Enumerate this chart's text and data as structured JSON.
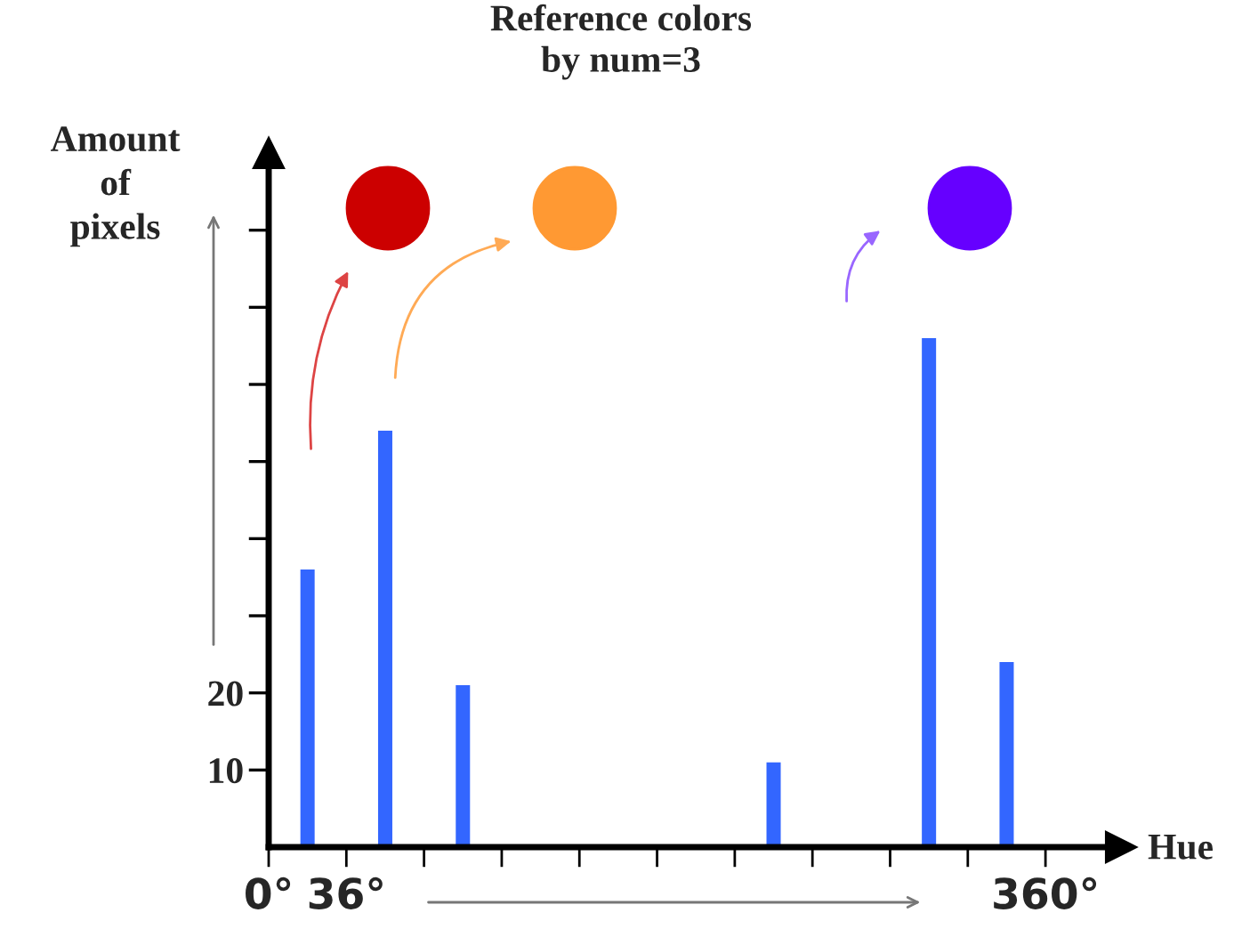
{
  "chart_data": {
    "type": "bar",
    "title": "Reference colors\nby num=3",
    "xlabel": "Hue",
    "ylabel": "Amount\nof\npixels",
    "x": [
      18,
      54,
      90,
      234,
      306,
      342
    ],
    "values": [
      36,
      54,
      21,
      11,
      66,
      24
    ],
    "color": "#3366ff",
    "xlim": [
      0,
      395
    ],
    "xticks": [
      {
        "value": 0,
        "label": "0°"
      },
      {
        "value": 36,
        "label": "36°"
      },
      {
        "value": 72,
        "label": null
      },
      {
        "value": 108,
        "label": null
      },
      {
        "value": 144,
        "label": null
      },
      {
        "value": 180,
        "label": null
      },
      {
        "value": 216,
        "label": null
      },
      {
        "value": 252,
        "label": null
      },
      {
        "value": 288,
        "label": null
      },
      {
        "value": 324,
        "label": null
      },
      {
        "value": 360,
        "label": "360°"
      }
    ],
    "ylim": [
      0,
      90
    ],
    "yticks": [
      10,
      20,
      {
        "value": 30,
        "label": null
      },
      {
        "value": 40,
        "label": null
      },
      {
        "value": 50,
        "label": null
      },
      {
        "value": 60,
        "label": null
      },
      {
        "value": 70,
        "label": null
      },
      {
        "value": 80,
        "label": null
      }
    ],
    "grid": false
  }
}
